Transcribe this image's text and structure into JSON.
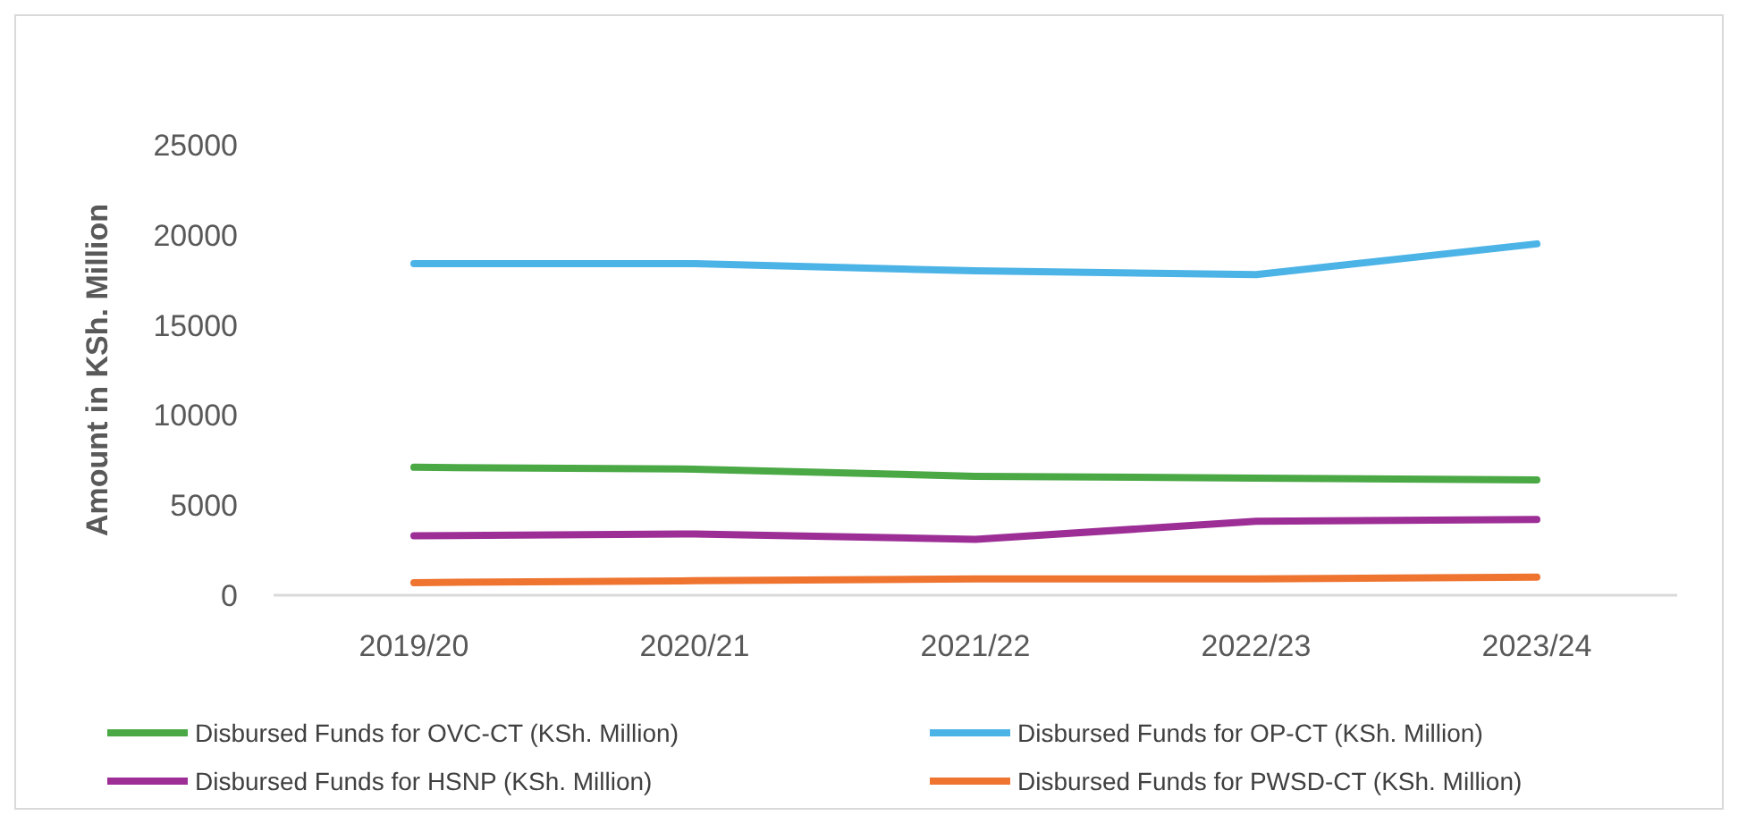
{
  "chart_data": {
    "type": "line",
    "ylabel": "Amount in KSh. Million",
    "categories": [
      "2019/20",
      "2020/21",
      "2021/22",
      "2022/23",
      "2023/24"
    ],
    "series": [
      {
        "name": "Disbursed Funds for OVC-CT (KSh. Million)",
        "color": "#4aa845",
        "values": [
          7100,
          7000,
          6600,
          6500,
          6400
        ]
      },
      {
        "name": "Disbursed Funds for OP-CT (KSh. Million)",
        "color": "#4cb3e6",
        "values": [
          18400,
          18400,
          18000,
          17800,
          19500
        ]
      },
      {
        "name": "Disbursed Funds for HSNP (KSh. Million)",
        "color": "#9c2e96",
        "values": [
          3300,
          3400,
          3100,
          4100,
          4200
        ]
      },
      {
        "name": "Disbursed Funds for PWSD-CT (KSh. Million)",
        "color": "#ee7430",
        "values": [
          700,
          800,
          900,
          900,
          1000
        ]
      }
    ],
    "ylim": [
      0,
      25000
    ],
    "yticks": [
      0,
      5000,
      10000,
      15000,
      20000,
      25000
    ],
    "grid": false,
    "legend": "bottom",
    "marker": "none",
    "line_style": "solid"
  }
}
